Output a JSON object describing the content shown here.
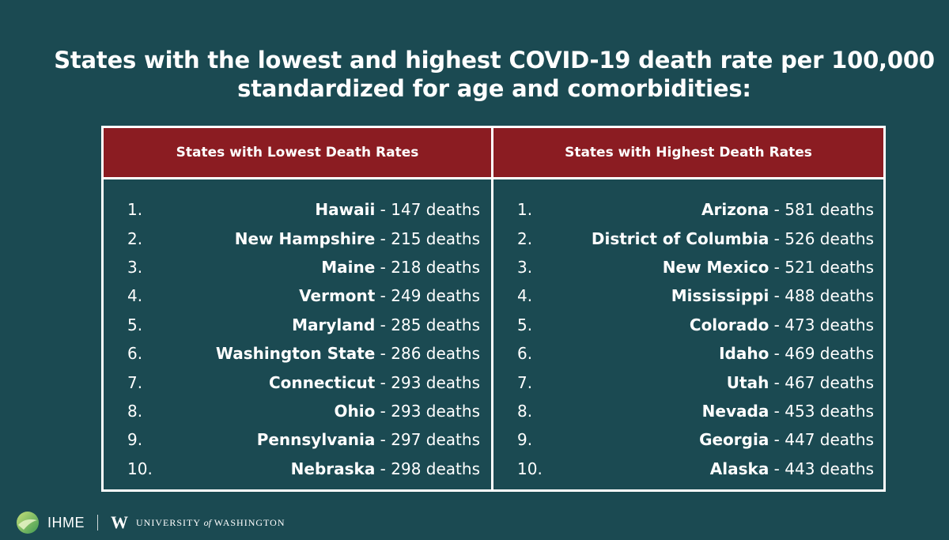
{
  "title": {
    "line1": "States with the lowest and highest COVID-19 death rate per 100,000",
    "line2": "standardized for age and comorbidities:"
  },
  "left": {
    "header": "States with Lowest Death Rates",
    "rows": [
      {
        "rank": "1.",
        "state": "Hawaii",
        "sep": " - ",
        "value": "147 deaths"
      },
      {
        "rank": "2.",
        "state": "New Hampshire",
        "sep": " - ",
        "value": "215 deaths"
      },
      {
        "rank": "3.",
        "state": "Maine",
        "sep": " - ",
        "value": "218 deaths"
      },
      {
        "rank": "4.",
        "state": "Vermont",
        "sep": " - ",
        "value": "249 deaths"
      },
      {
        "rank": "5.",
        "state": "Maryland",
        "sep": " - ",
        "value": "285 deaths"
      },
      {
        "rank": "6.",
        "state": "Washington State",
        "sep": " - ",
        "value": "286 deaths"
      },
      {
        "rank": "7.",
        "state": "Connecticut",
        "sep": " - ",
        "value": "293 deaths"
      },
      {
        "rank": "8.",
        "state": "Ohio",
        "sep": " - ",
        "value": "293 deaths"
      },
      {
        "rank": "9.",
        "state": "Pennsylvania",
        "sep": " - ",
        "value": "297 deaths"
      },
      {
        "rank": "10.",
        "state": "Nebraska",
        "sep": " - ",
        "value": "298 deaths"
      }
    ]
  },
  "right": {
    "header": "States with Highest Death Rates",
    "rows": [
      {
        "rank": "1.",
        "state": "Arizona",
        "sep": " - ",
        "value": "581 deaths"
      },
      {
        "rank": "2.",
        "state": "District of Columbia",
        "sep": " - ",
        "value": "526 deaths"
      },
      {
        "rank": "3.",
        "state": "New Mexico",
        "sep": " - ",
        "value": "521 deaths"
      },
      {
        "rank": "4.",
        "state": "Mississippi",
        "sep": " - ",
        "value": "488 deaths"
      },
      {
        "rank": "5.",
        "state": "Colorado",
        "sep": " - ",
        "value": "473 deaths"
      },
      {
        "rank": "6.",
        "state": "Idaho",
        "sep": " - ",
        "value": "469 deaths"
      },
      {
        "rank": "7.",
        "state": "Utah",
        "sep": " - ",
        "value": "467 deaths"
      },
      {
        "rank": "8.",
        "state": "Nevada",
        "sep": " - ",
        "value": "453 deaths"
      },
      {
        "rank": "9.",
        "state": "Georgia",
        "sep": " - ",
        "value": "447 deaths"
      },
      {
        "rank": "10.",
        "state": "Alaska",
        "sep": " - ",
        "value": "443 deaths"
      }
    ]
  },
  "footer": {
    "ihme": "IHME",
    "uw_mark": "W",
    "uw_university": "UNIVERSITY",
    "uw_of": "of",
    "uw_washington": "WASHINGTON"
  },
  "colors": {
    "background": "#1b4a52",
    "header_red": "#8b1c22",
    "text": "#ffffff"
  }
}
